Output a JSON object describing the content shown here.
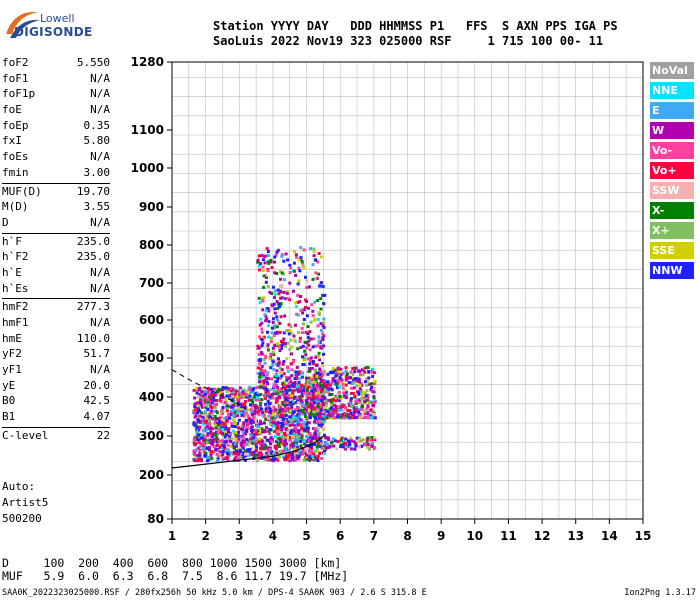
{
  "logo": {
    "line1": "Lowell",
    "line2": "DIGISONDE"
  },
  "header": {
    "line1": "Station YYYY DAY   DDD HHMMSS P1   FFS  S AXN PPS IGA PS",
    "line2": "SaoLuis 2022 Nov19 323 025000 RSF     1 715 100 00- 11"
  },
  "params": {
    "group1": [
      {
        "name": "foF2",
        "value": "5.550"
      },
      {
        "name": "foF1",
        "value": "N/A"
      },
      {
        "name": "foF1p",
        "value": "N/A"
      },
      {
        "name": "foE",
        "value": "N/A"
      },
      {
        "name": "foEp",
        "value": "0.35"
      },
      {
        "name": "fxI",
        "value": "5.80"
      },
      {
        "name": "foEs",
        "value": "N/A"
      },
      {
        "name": "fmin",
        "value": "3.00"
      }
    ],
    "group2": [
      {
        "name": "MUF(D)",
        "value": "19.70"
      },
      {
        "name": "M(D)",
        "value": "3.55"
      },
      {
        "name": "D",
        "value": "N/A"
      }
    ],
    "group3": [
      {
        "name": "h`F",
        "value": "235.0"
      },
      {
        "name": "h`F2",
        "value": "235.0"
      },
      {
        "name": "h`E",
        "value": "N/A"
      },
      {
        "name": "h`Es",
        "value": "N/A"
      }
    ],
    "group4": [
      {
        "name": "hmF2",
        "value": "277.3"
      },
      {
        "name": "hmF1",
        "value": "N/A"
      },
      {
        "name": "hmE",
        "value": "110.0"
      },
      {
        "name": "yF2",
        "value": "51.7"
      },
      {
        "name": "yF1",
        "value": "N/A"
      },
      {
        "name": "yE",
        "value": "20.0"
      },
      {
        "name": "B0",
        "value": "42.5"
      },
      {
        "name": "B1",
        "value": "4.07"
      }
    ],
    "group5": [
      {
        "name": "C-level",
        "value": "22"
      }
    ]
  },
  "auto": {
    "line1": "Auto:",
    "line2": "Artist5",
    "line3": "500200"
  },
  "legend": [
    {
      "label": "NoVal",
      "color": "#a0a0a0"
    },
    {
      "label": "NNE",
      "color": "#00e5ff"
    },
    {
      "label": "E",
      "color": "#3fa9f5"
    },
    {
      "label": "W",
      "color": "#b000b0"
    },
    {
      "label": "Vo-",
      "color": "#ff40a0"
    },
    {
      "label": "Vo+",
      "color": "#ff0040"
    },
    {
      "label": "SSW",
      "color": "#f5b0b0"
    },
    {
      "label": "X-",
      "color": "#008000"
    },
    {
      "label": "X+",
      "color": "#80c060"
    },
    {
      "label": "SSE",
      "color": "#d0d000"
    },
    {
      "label": "NNW",
      "color": "#2020ff"
    }
  ],
  "dmuf": {
    "d_line": "D     100  200  400  600  800 1000 1500 3000 [km]",
    "muf_line": "MUF   5.9  6.0  6.3  6.8  7.5  8.6 11.7 19.7 [MHz]"
  },
  "footer": {
    "left": "SAA0K_2022323025000.RSF / 280fx256h 50 kHz 5.0 km / DPS-4 SAA0K 903 / 2.6 S 315.8 E",
    "right": "Ion2Png 1.3.17"
  },
  "chart_data": {
    "type": "scatter",
    "x_ticks": [
      "1",
      "2",
      "3",
      "4",
      "5",
      "6",
      "7",
      "8",
      "9",
      "10",
      "11",
      "12",
      "13",
      "14",
      "15"
    ],
    "y_ticks": [
      "80",
      "200",
      "300",
      "400",
      "500",
      "600",
      "700",
      "800",
      "900",
      "1000",
      "1100",
      "1280"
    ],
    "xlim": [
      1,
      15
    ],
    "ylim": [
      80,
      1280
    ],
    "grid": true,
    "legend_position": "right",
    "trace_lower": [
      [
        1.0,
        218
      ],
      [
        2.0,
        228
      ],
      [
        3.0,
        238
      ],
      [
        4.0,
        248
      ],
      [
        4.6,
        260
      ],
      [
        5.0,
        273
      ],
      [
        5.3,
        285
      ],
      [
        5.5,
        300
      ]
    ],
    "trace_dashed": [
      [
        1.0,
        470
      ],
      [
        1.6,
        440
      ],
      [
        2.2,
        415
      ],
      [
        2.8,
        390
      ],
      [
        3.2,
        370
      ]
    ],
    "scatter_regions": [
      {
        "x": [
          1.6,
          5.5
        ],
        "y": [
          240,
          430
        ],
        "density": "high"
      },
      {
        "x": [
          3.5,
          5.5
        ],
        "y": [
          430,
          800
        ],
        "density": "medium"
      },
      {
        "x": [
          5.0,
          7.0
        ],
        "y": [
          350,
          480
        ],
        "density": "medium"
      },
      {
        "x": [
          5.5,
          7.0
        ],
        "y": [
          270,
          300
        ],
        "density": "low"
      }
    ]
  }
}
